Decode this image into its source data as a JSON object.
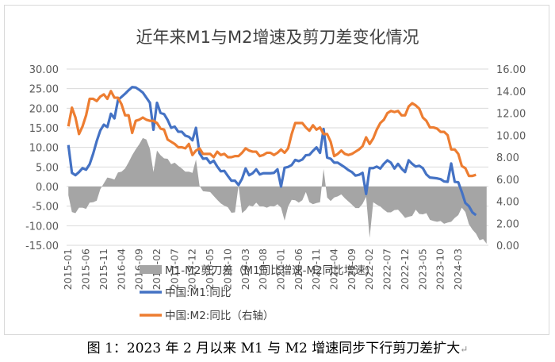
{
  "figure": {
    "caption": "图 1：2023 年 2 月以来 M1 与 M2 增速同步下行剪刀差扩大",
    "caption_mark": "↵",
    "background": "#ffffff",
    "grid_color": "#d9d9d9"
  },
  "chart_data": {
    "type": "line",
    "title": "近年来M1与M2增速及剪刀差变化情况",
    "left_axis": {
      "range": [
        -15,
        30
      ],
      "ticks": [
        "30.00",
        "25.00",
        "20.00",
        "15.00",
        "10.00",
        "5.00",
        "0.00",
        "-5.00",
        "-10.00",
        "-15.00"
      ]
    },
    "right_axis": {
      "range": [
        0,
        16
      ],
      "ticks": [
        "16.00",
        "14.00",
        "12.00",
        "10.00",
        "8.00",
        "6.00",
        "4.00",
        "2.00",
        "0.00"
      ]
    },
    "x_start": "2015-01",
    "x_tick_labels": [
      "2015-01",
      "2015-06",
      "2015-11",
      "2016-04",
      "2016-09",
      "2017-02",
      "2017-07",
      "2017-12",
      "2018-05",
      "2018-10",
      "2019-03",
      "2019-08",
      "2020-01",
      "2020-06",
      "2020-11",
      "2021-04",
      "2021-09",
      "2022-02",
      "2022-07",
      "2022-12",
      "2023-05",
      "2023-10",
      "2024-03"
    ],
    "series": [
      {
        "name": "M1-M2剪刀差（M1同比增速-M2同比增速)",
        "axis": "left",
        "kind": "area",
        "color": "#a5a5a5",
        "values": [
          -2.2,
          -6.5,
          -6.8,
          -5.4,
          -5.4,
          -5.7,
          -4.1,
          -4.0,
          -3.6,
          -0.7,
          0.8,
          2.3,
          2.1,
          1.8,
          3.6,
          3.8,
          4.6,
          6.2,
          8.0,
          9.5,
          10.8,
          12.4,
          12.0,
          9.6,
          3.7,
          9.2,
          8.0,
          7.2,
          7.1,
          5.7,
          6.1,
          5.3,
          4.6,
          3.8,
          3.8,
          3.5,
          6.9,
          0.2,
          -1.2,
          -1.3,
          -1.4,
          -2.4,
          -3.4,
          -4.3,
          -4.9,
          -5.3,
          -6.7,
          -6.6,
          0.2,
          -6.8,
          -6.0,
          -4.8,
          -5.1,
          -4.1,
          -5.1,
          -5.1,
          -5.4,
          -5.0,
          -5.1,
          -4.5,
          -5.4,
          -8.7,
          -5.1,
          -3.4,
          -3.5,
          -4.1,
          -3.5,
          -1.4,
          -4.0,
          -4.5,
          -4.2,
          -4.0,
          4.5,
          -2.8,
          -3.7,
          -2.8,
          -2.5,
          -2.0,
          -3.0,
          -3.8,
          -4.6,
          -5.5,
          -5.5,
          -4.4,
          -2.6,
          -13.1,
          -4.0,
          -4.6,
          -5.1,
          -5.9,
          -6.6,
          -6.6,
          -6.0,
          -5.9,
          -6.9,
          -8.0,
          -7.7,
          -7.5,
          -5.9,
          -7.0,
          -7.1,
          -6.8,
          -8.5,
          -8.8,
          -9.0,
          -8.8,
          -9.5,
          -9.2,
          -9.0,
          -8.0,
          -7.3,
          -5.4,
          -6.5,
          -9.6,
          -11.0,
          -12.0,
          -13.7,
          -13.4,
          -14.6
        ]
      },
      {
        "name": "中国:M1:同比",
        "axis": "left",
        "kind": "line",
        "color": "#4472c4",
        "values": [
          10.6,
          3.5,
          2.9,
          3.7,
          4.7,
          4.3,
          5.7,
          8.4,
          11.6,
          14.3,
          15.8,
          15.2,
          18.6,
          17.4,
          22.1,
          22.9,
          23.7,
          24.6,
          25.4,
          25.3,
          24.7,
          24.0,
          22.7,
          21.4,
          14.5,
          21.4,
          18.8,
          18.5,
          17.0,
          15.0,
          15.3,
          14.0,
          14.0,
          13.0,
          12.7,
          11.8,
          15.0,
          8.5,
          7.1,
          7.2,
          6.0,
          6.6,
          5.1,
          3.9,
          4.0,
          2.7,
          1.5,
          1.5,
          0.4,
          2.0,
          4.6,
          2.9,
          3.4,
          4.4,
          3.1,
          3.4,
          3.4,
          3.4,
          3.5,
          4.4,
          0.0,
          4.8,
          5.0,
          5.5,
          6.8,
          6.5,
          6.9,
          8.0,
          8.1,
          9.1,
          10.0,
          8.6,
          14.7,
          7.4,
          7.1,
          6.1,
          6.1,
          5.5,
          4.9,
          4.2,
          3.7,
          2.8,
          3.0,
          3.5,
          -1.9,
          4.7,
          4.7,
          5.1,
          4.6,
          5.8,
          6.7,
          6.1,
          4.6,
          5.8,
          4.6,
          3.7,
          6.7,
          5.8,
          5.1,
          5.3,
          4.7,
          3.1,
          2.3,
          2.2,
          2.1,
          1.9,
          1.3,
          1.2,
          5.9,
          1.2,
          1.1,
          -1.4,
          -4.2,
          -5.0,
          -6.6,
          -7.3
        ]
      },
      {
        "name": "中国:M2:同比（右轴）",
        "axis": "right",
        "kind": "line",
        "color": "#ed7d31",
        "values": [
          10.8,
          12.5,
          11.6,
          10.1,
          10.8,
          11.8,
          13.3,
          13.3,
          13.1,
          13.5,
          13.7,
          13.3,
          14.0,
          13.4,
          13.4,
          12.8,
          11.8,
          11.8,
          10.2,
          11.3,
          11.4,
          11.6,
          11.4,
          11.3,
          11.3,
          11.1,
          10.6,
          10.5,
          9.6,
          9.4,
          9.2,
          8.9,
          8.9,
          8.8,
          9.2,
          8.2,
          8.6,
          8.8,
          8.3,
          8.3,
          8.3,
          8.0,
          8.5,
          8.2,
          8.3,
          8.0,
          8.0,
          8.1,
          8.1,
          8.4,
          8.8,
          8.6,
          8.5,
          8.5,
          8.1,
          8.2,
          8.4,
          8.4,
          8.2,
          8.4,
          8.7,
          8.4,
          8.8,
          10.1,
          11.1,
          11.1,
          11.1,
          10.7,
          10.4,
          10.9,
          10.5,
          10.7,
          10.1,
          10.1,
          9.4,
          8.1,
          8.3,
          8.6,
          8.3,
          8.2,
          8.3,
          8.5,
          8.7,
          9.0,
          9.8,
          9.2,
          9.7,
          10.5,
          11.1,
          11.4,
          12.0,
          12.2,
          12.1,
          12.2,
          11.8,
          11.8,
          12.6,
          12.9,
          12.7,
          12.4,
          11.6,
          11.3,
          10.7,
          10.7,
          10.6,
          10.3,
          10.3,
          10.0,
          8.7,
          8.7,
          8.3,
          7.2,
          7.0,
          6.3,
          6.3,
          6.4
        ]
      }
    ],
    "legend": {
      "position": "bottom",
      "entries": [
        "M1-M2剪刀差（M1同比增速-M2同比增速)",
        "中国:M1:同比",
        "中国:M2:同比（右轴）"
      ]
    }
  }
}
